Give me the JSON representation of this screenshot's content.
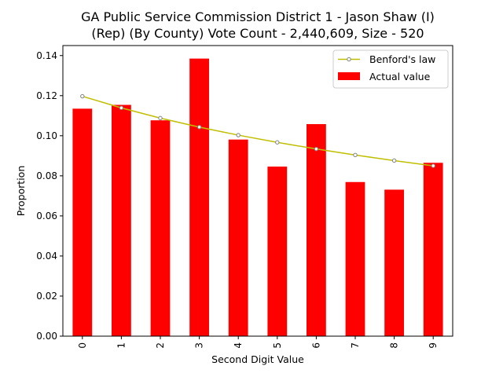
{
  "chart_data": {
    "type": "bar",
    "title": [
      "GA Public Service Commission District 1 - Jason Shaw (I)",
      "(Rep) (By County) Vote Count - 2,440,609, Size - 520"
    ],
    "xlabel": "Second Digit Value",
    "ylabel": "Proportion",
    "categories": [
      "0",
      "1",
      "2",
      "3",
      "4",
      "5",
      "6",
      "7",
      "8",
      "9"
    ],
    "ylim": [
      0,
      0.145
    ],
    "yticks": [
      0.0,
      0.02,
      0.04,
      0.06,
      0.08,
      0.1,
      0.12,
      0.14
    ],
    "series": [
      {
        "name": "Actual value",
        "type": "bar",
        "color": "#ff0000",
        "values": [
          0.1135,
          0.1154,
          0.1077,
          0.1385,
          0.0981,
          0.0846,
          0.1058,
          0.0769,
          0.0731,
          0.0865
        ]
      },
      {
        "name": "Benford's law",
        "type": "line",
        "color": "#bfbf00",
        "marker_color": "#808080",
        "values": [
          0.1197,
          0.1139,
          0.1088,
          0.1043,
          0.1003,
          0.0967,
          0.0934,
          0.0904,
          0.0876,
          0.085
        ]
      }
    ],
    "legend_position": "top-right",
    "grid": false
  }
}
